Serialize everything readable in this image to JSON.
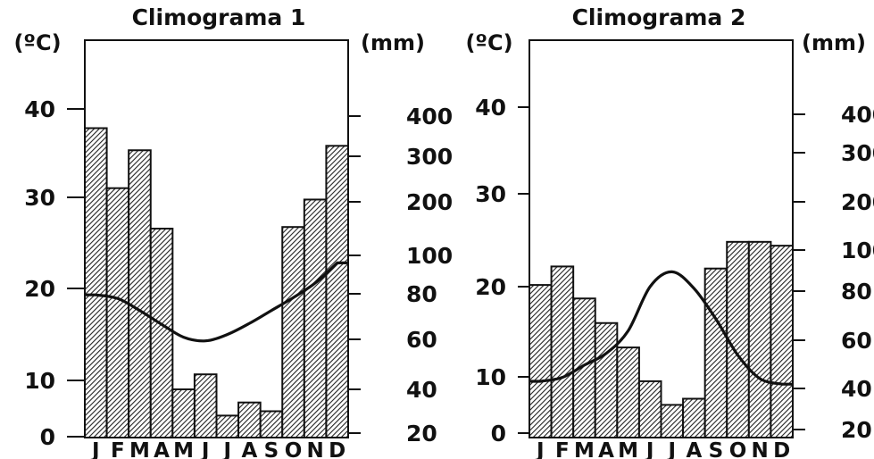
{
  "chart_data": [
    {
      "type": "bar+line",
      "title": "Climograma 1",
      "left_unit": "(ºC)",
      "right_unit": "(mm)",
      "categories": [
        "J",
        "F",
        "M",
        "A",
        "M",
        "J",
        "J",
        "A",
        "S",
        "O",
        "N",
        "D"
      ],
      "left_ticks": [
        "0",
        "10",
        "20",
        "30",
        "40"
      ],
      "right_ticks": [
        "20",
        "40",
        "60",
        "80",
        "100",
        "200",
        "300",
        "400"
      ],
      "precipitation_mm": [
        370,
        230,
        315,
        150,
        40,
        46,
        28,
        34,
        30,
        153,
        205,
        326
      ],
      "temperature_c": [
        19.3,
        18.9,
        17.6,
        16.1,
        14.7,
        14.3,
        15.0,
        16.2,
        17.6,
        19.0,
        20.6,
        22.8
      ]
    },
    {
      "type": "bar+line",
      "title": "Climograma 2",
      "left_unit": "(ºC)",
      "right_unit": "(mm)",
      "categories": [
        "J",
        "F",
        "M",
        "A",
        "M",
        "J",
        "J",
        "A",
        "S",
        "O",
        "N",
        "D"
      ],
      "left_ticks": [
        "0",
        "10",
        "20",
        "30",
        "40"
      ],
      "right_ticks": [
        "20",
        "40",
        "60",
        "80",
        "100",
        "200",
        "300",
        "400"
      ],
      "precipitation_mm": [
        83,
        92,
        77,
        67,
        57,
        43,
        32,
        35,
        91,
        117,
        117,
        109
      ],
      "temperature_c": [
        9.2,
        9.9,
        11.3,
        12.6,
        15.1,
        20.0,
        21.6,
        19.8,
        16.4,
        12.4,
        9.7,
        8.7
      ]
    }
  ]
}
